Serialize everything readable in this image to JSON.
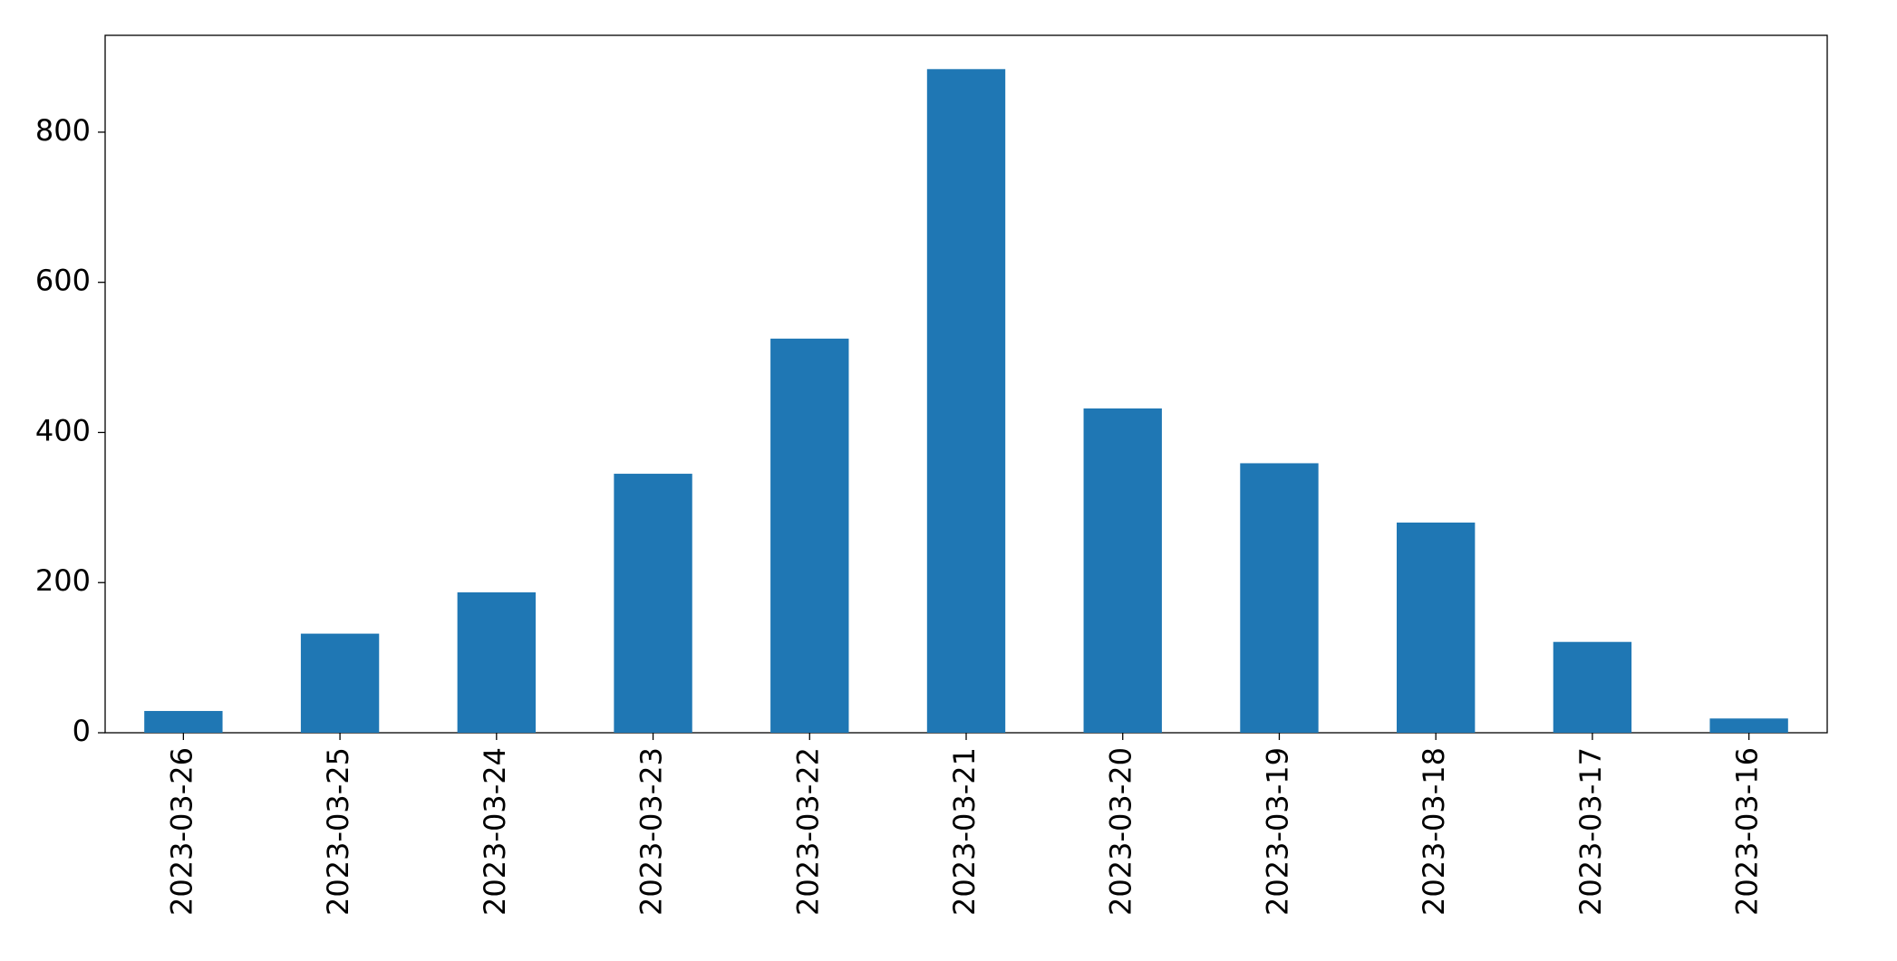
{
  "chart_data": {
    "type": "bar",
    "categories": [
      "2023-03-26",
      "2023-03-25",
      "2023-03-24",
      "2023-03-23",
      "2023-03-22",
      "2023-03-21",
      "2023-03-20",
      "2023-03-19",
      "2023-03-18",
      "2023-03-17",
      "2023-03-16"
    ],
    "values": [
      29,
      132,
      187,
      345,
      525,
      884,
      432,
      359,
      280,
      121,
      19
    ],
    "color": "#1f77b4",
    "ylim": [
      0,
      929
    ],
    "yticks": [
      0,
      200,
      400,
      600,
      800
    ],
    "grid": false
  }
}
